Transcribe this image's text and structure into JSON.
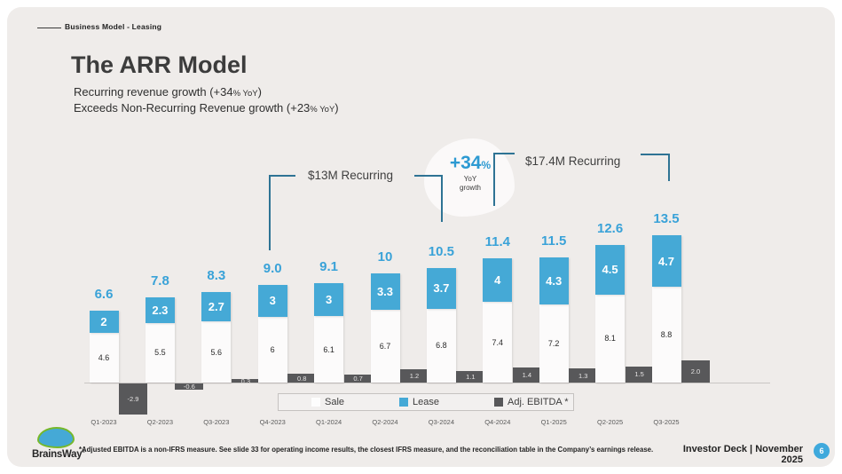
{
  "header": {
    "eyebrow": "Business Model - Leasing",
    "title": "The ARR Model",
    "subtitle1": {
      "a": "Recurring revenue growth (+34",
      "small": "% YoY",
      "b": ")"
    },
    "subtitle2": {
      "a": "Exceeds Non-Recurring Revenue growth (+23",
      "small": "% YoY",
      "b": ")"
    }
  },
  "annotations": {
    "recurring_2024": "$13M Recurring",
    "recurring_2025": "$17.4M Recurring",
    "growth_value": "+34",
    "growth_pct": "%",
    "growth_caption_line1": "YoY",
    "growth_caption_line2": "growth"
  },
  "chart_data": {
    "type": "bar",
    "stacked": true,
    "categories": [
      "Q1-2023",
      "Q2-2023",
      "Q3-2023",
      "Q4-2023",
      "Q1-2024",
      "Q2-2024",
      "Q3-2024",
      "Q4-2024",
      "Q1-2025",
      "Q2-2025",
      "Q3-2025"
    ],
    "series": [
      {
        "name": "Sale",
        "color": "#fcfbfb",
        "values": [
          4.6,
          5.5,
          5.6,
          6,
          6.1,
          6.7,
          6.8,
          7.4,
          7.2,
          8.1,
          8.8
        ],
        "labels": [
          "4.6",
          "5.5",
          "5.6",
          "6",
          "6.1",
          "6.7",
          "6.8",
          "7.4",
          "7.2",
          "8.1",
          "8.8"
        ]
      },
      {
        "name": "Lease",
        "color": "#45a9d6",
        "values": [
          2,
          2.3,
          2.7,
          3,
          3,
          3.3,
          3.7,
          4,
          4.3,
          4.5,
          4.7
        ],
        "labels": [
          "2",
          "2.3",
          "2.7",
          "3",
          "3",
          "3.3",
          "3.7",
          "4",
          "4.3",
          "4.5",
          "4.7"
        ]
      },
      {
        "name": "Adj. EBITDA *",
        "color": "#58585a",
        "values": [
          -2.9,
          -0.6,
          0.3,
          0.8,
          0.7,
          1.2,
          1.1,
          1.4,
          1.3,
          1.5,
          2.0
        ],
        "labels": [
          "-2.9",
          "-0.6",
          "0.3",
          "0.8",
          "0.7",
          "1.2",
          "1.1",
          "1.4",
          "1.3",
          "1.5",
          "2.0"
        ]
      }
    ],
    "totals": [
      "6.6",
      "7.8",
      "8.3",
      "9.0",
      "9.1",
      "10",
      "10.5",
      "11.4",
      "11.5",
      "12.6",
      "13.5"
    ],
    "title": "",
    "xlabel": "",
    "ylabel": "",
    "ylim": [
      -3,
      14
    ],
    "grid": false,
    "legend_position": "bottom"
  },
  "footer": {
    "footnote": "*Adjusted EBITDA is a non-IFRS measure. See slide 33 for operating income results, the closest IFRS measure, and the reconciliation table in the Company’s earnings release.",
    "deck_label": "Investor Deck | November 2025",
    "page_number": "6",
    "logo_text": "BrainsWay",
    "logo_mark": "®"
  },
  "colors": {
    "accent_blue": "#45a9d6",
    "label_blue": "#39a2d8",
    "ebitda_gray": "#58585a",
    "bracket_teal": "#2e7394",
    "slide_bg": "#efecea"
  }
}
